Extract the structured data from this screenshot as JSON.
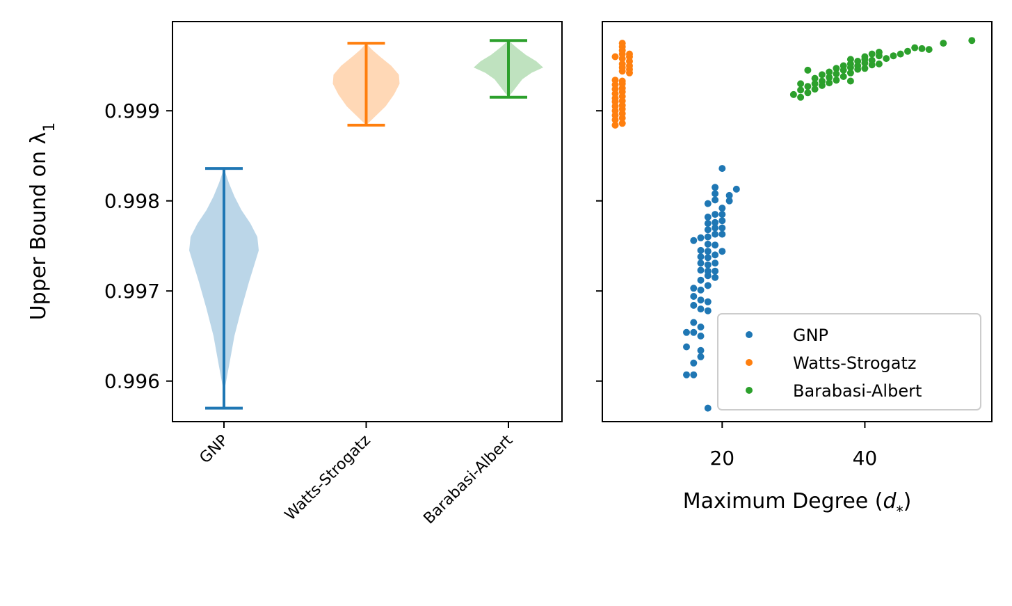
{
  "chart_data": [
    {
      "type": "violin",
      "panel": "left",
      "categories": [
        "GNP",
        "Watts-Strogatz",
        "Barabasi-Albert"
      ],
      "colors": [
        "#1f77b4",
        "#ff7f0e",
        "#2ca02c"
      ],
      "ylabel": "Upper Bound on λ",
      "ylabel_subscript": "1",
      "ylim": [
        0.99555,
        0.99999
      ],
      "yticks": [
        0.996,
        0.997,
        0.998,
        0.999
      ],
      "ytick_labels": [
        "0.996",
        "0.997",
        "0.998",
        "0.999"
      ],
      "series": [
        {
          "name": "GNP",
          "min": 0.9957,
          "max": 0.99836,
          "density": [
            [
              0.9957,
              0.0
            ],
            [
              0.99595,
              0.02
            ],
            [
              0.9962,
              0.08
            ],
            [
              0.9965,
              0.15
            ],
            [
              0.9968,
              0.25
            ],
            [
              0.9971,
              0.36
            ],
            [
              0.9973,
              0.44
            ],
            [
              0.99745,
              0.5
            ],
            [
              0.9976,
              0.48
            ],
            [
              0.99775,
              0.38
            ],
            [
              0.9979,
              0.25
            ],
            [
              0.99805,
              0.15
            ],
            [
              0.9982,
              0.07
            ],
            [
              0.99836,
              0.0
            ]
          ]
        },
        {
          "name": "Watts-Strogatz",
          "min": 0.99884,
          "max": 0.99975,
          "density": [
            [
              0.99884,
              0.0
            ],
            [
              0.99893,
              0.12
            ],
            [
              0.99905,
              0.28
            ],
            [
              0.99918,
              0.4
            ],
            [
              0.9993,
              0.48
            ],
            [
              0.9994,
              0.47
            ],
            [
              0.9995,
              0.36
            ],
            [
              0.9996,
              0.2
            ],
            [
              0.99968,
              0.08
            ],
            [
              0.99975,
              0.0
            ]
          ]
        },
        {
          "name": "Barabasi-Albert",
          "min": 0.99915,
          "max": 0.99978,
          "density": [
            [
              0.99915,
              0.0
            ],
            [
              0.99925,
              0.1
            ],
            [
              0.99935,
              0.2
            ],
            [
              0.99942,
              0.33
            ],
            [
              0.99948,
              0.5
            ],
            [
              0.99955,
              0.4
            ],
            [
              0.99962,
              0.25
            ],
            [
              0.9997,
              0.12
            ],
            [
              0.99978,
              0.0
            ]
          ]
        }
      ]
    },
    {
      "type": "scatter",
      "panel": "right",
      "xlabel": "Maximum Degree (",
      "xlabel_var": "d",
      "xlabel_sub": "*",
      "xlabel_close": ")",
      "xlim": [
        3.2,
        57.8
      ],
      "xticks": [
        20,
        40
      ],
      "xtick_labels": [
        "20",
        "40"
      ],
      "ylim": [
        0.99555,
        0.99999
      ],
      "legend": [
        "GNP",
        "Watts-Strogatz",
        "Barabasi-Albert"
      ],
      "legend_position": "lower-right",
      "series": [
        {
          "name": "GNP",
          "color": "#1f77b4",
          "points": [
            [
              15,
              0.99607
            ],
            [
              16,
              0.99607
            ],
            [
              15,
              0.99638
            ],
            [
              16,
              0.9962
            ],
            [
              17,
              0.99627
            ],
            [
              17,
              0.99634
            ],
            [
              15,
              0.99654
            ],
            [
              16,
              0.99654
            ],
            [
              17,
              0.9965
            ],
            [
              16,
              0.99665
            ],
            [
              17,
              0.9966
            ],
            [
              18,
              0.9957
            ],
            [
              16,
              0.99684
            ],
            [
              17,
              0.9968
            ],
            [
              18,
              0.99678
            ],
            [
              16,
              0.99694
            ],
            [
              17,
              0.9969
            ],
            [
              18,
              0.99688
            ],
            [
              16,
              0.99703
            ],
            [
              17,
              0.99701
            ],
            [
              18,
              0.99706
            ],
            [
              17,
              0.99712
            ],
            [
              18,
              0.99717
            ],
            [
              19,
              0.99715
            ],
            [
              17,
              0.99723
            ],
            [
              18,
              0.99722
            ],
            [
              19,
              0.99722
            ],
            [
              17,
              0.99731
            ],
            [
              18,
              0.99729
            ],
            [
              19,
              0.99731
            ],
            [
              17,
              0.99738
            ],
            [
              18,
              0.99737
            ],
            [
              19,
              0.9974
            ],
            [
              20,
              0.99744
            ],
            [
              17,
              0.99745
            ],
            [
              18,
              0.99744
            ],
            [
              16,
              0.99756
            ],
            [
              18,
              0.99752
            ],
            [
              19,
              0.99751
            ],
            [
              17,
              0.99759
            ],
            [
              18,
              0.9976
            ],
            [
              19,
              0.99763
            ],
            [
              20,
              0.99763
            ],
            [
              18,
              0.99768
            ],
            [
              19,
              0.9977
            ],
            [
              20,
              0.9977
            ],
            [
              18,
              0.99775
            ],
            [
              19,
              0.99776
            ],
            [
              20,
              0.99778
            ],
            [
              18,
              0.99782
            ],
            [
              19,
              0.99785
            ],
            [
              20,
              0.99785
            ],
            [
              20,
              0.99792
            ],
            [
              18,
              0.99797
            ],
            [
              19,
              0.99801
            ],
            [
              21,
              0.998
            ],
            [
              21,
              0.99806
            ],
            [
              19,
              0.99808
            ],
            [
              19,
              0.99815
            ],
            [
              22,
              0.99813
            ],
            [
              20,
              0.99836
            ]
          ]
        },
        {
          "name": "Watts-Strogatz",
          "color": "#ff7f0e",
          "points": [
            [
              5,
              0.99884
            ],
            [
              6,
              0.99886
            ],
            [
              5,
              0.9989
            ],
            [
              6,
              0.99892
            ],
            [
              5,
              0.99895
            ],
            [
              6,
              0.99897
            ],
            [
              5,
              0.999
            ],
            [
              6,
              0.99902
            ],
            [
              5,
              0.99905
            ],
            [
              6,
              0.99906
            ],
            [
              5,
              0.9991
            ],
            [
              6,
              0.99911
            ],
            [
              5,
              0.99914
            ],
            [
              6,
              0.99916
            ],
            [
              5,
              0.99919
            ],
            [
              6,
              0.99921
            ],
            [
              5,
              0.99924
            ],
            [
              6,
              0.99925
            ],
            [
              5,
              0.99929
            ],
            [
              6,
              0.9993
            ],
            [
              5,
              0.99934
            ],
            [
              6,
              0.99933
            ],
            [
              7,
              0.99942
            ],
            [
              6,
              0.99944
            ],
            [
              7,
              0.99946
            ],
            [
              6,
              0.99948
            ],
            [
              7,
              0.9995
            ],
            [
              6,
              0.99952
            ],
            [
              7,
              0.99955
            ],
            [
              6,
              0.99958
            ],
            [
              7,
              0.9996
            ],
            [
              5,
              0.9996
            ],
            [
              6,
              0.99963
            ],
            [
              7,
              0.99963
            ],
            [
              6,
              0.99967
            ],
            [
              6,
              0.99971
            ],
            [
              6,
              0.99975
            ]
          ]
        },
        {
          "name": "Barabasi-Albert",
          "color": "#2ca02c",
          "points": [
            [
              31,
              0.99915
            ],
            [
              30,
              0.99918
            ],
            [
              32,
              0.9992
            ],
            [
              31,
              0.99923
            ],
            [
              33,
              0.99924
            ],
            [
              32,
              0.99927
            ],
            [
              34,
              0.99928
            ],
            [
              31,
              0.9993
            ],
            [
              33,
              0.9993
            ],
            [
              35,
              0.99931
            ],
            [
              34,
              0.99933
            ],
            [
              36,
              0.99934
            ],
            [
              33,
              0.99936
            ],
            [
              35,
              0.99937
            ],
            [
              37,
              0.99938
            ],
            [
              38,
              0.99933
            ],
            [
              34,
              0.9994
            ],
            [
              36,
              0.99941
            ],
            [
              38,
              0.99942
            ],
            [
              35,
              0.99943
            ],
            [
              32,
              0.99945
            ],
            [
              37,
              0.99945
            ],
            [
              39,
              0.99946
            ],
            [
              36,
              0.99947
            ],
            [
              38,
              0.99948
            ],
            [
              40,
              0.99947
            ],
            [
              37,
              0.9995
            ],
            [
              39,
              0.9995
            ],
            [
              41,
              0.99951
            ],
            [
              38,
              0.99952
            ],
            [
              40,
              0.99953
            ],
            [
              42,
              0.99952
            ],
            [
              39,
              0.99955
            ],
            [
              41,
              0.99956
            ],
            [
              38,
              0.99957
            ],
            [
              40,
              0.99957
            ],
            [
              43,
              0.99958
            ],
            [
              40,
              0.9996
            ],
            [
              42,
              0.99961
            ],
            [
              44,
              0.99961
            ],
            [
              41,
              0.99963
            ],
            [
              45,
              0.99963
            ],
            [
              42,
              0.99965
            ],
            [
              46,
              0.99966
            ],
            [
              47,
              0.9997
            ],
            [
              48,
              0.99969
            ],
            [
              49,
              0.99968
            ],
            [
              51,
              0.99975
            ],
            [
              55,
              0.99978
            ]
          ]
        }
      ]
    }
  ]
}
